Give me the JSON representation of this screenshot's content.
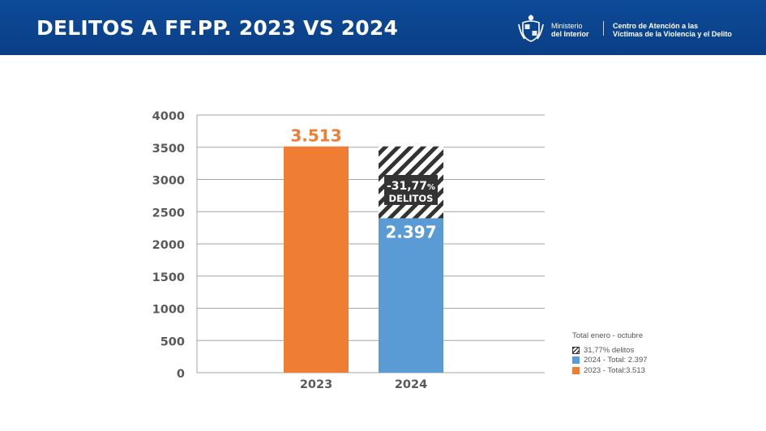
{
  "header": {
    "title": "DELITOS A FF.PP. 2023 VS 2024",
    "ministry_line1": "Ministerio",
    "ministry_line2": "del Interior",
    "center_line1": "Centro de Atención a las",
    "center_line2": "Víctimas de la Violencia y el Delito"
  },
  "colors": {
    "header_bg": "#0a3f86",
    "bar_2023": "#ef7d33",
    "bar_2024": "#5b9bd5",
    "hatch": "#333333",
    "grid": "#a6a6a6",
    "tick_label": "#595959"
  },
  "chart_data": {
    "type": "bar",
    "categories": [
      "2023",
      "2024"
    ],
    "values": [
      3513,
      2397
    ],
    "data_labels": [
      "3.513",
      "2.397"
    ],
    "reduction_segment": {
      "from": 2397,
      "to": 3513,
      "category": "2024"
    },
    "annotation": {
      "line1": "-31,77",
      "line1_suffix": "%",
      "line2": "DELITOS"
    },
    "ylim": [
      0,
      4000
    ],
    "yticks": [
      0,
      500,
      1000,
      1500,
      2000,
      2500,
      3000,
      3500,
      4000
    ],
    "grid": true,
    "legend_placement": "bottom-right",
    "legend": {
      "title": "Total enero - octubre",
      "items": [
        {
          "label": "31,77% delitos",
          "swatch": "hatch"
        },
        {
          "label": "2024 - Total: 2.397",
          "swatch": "blue"
        },
        {
          "label": "2023 - Total:3.513",
          "swatch": "orange"
        }
      ]
    }
  }
}
